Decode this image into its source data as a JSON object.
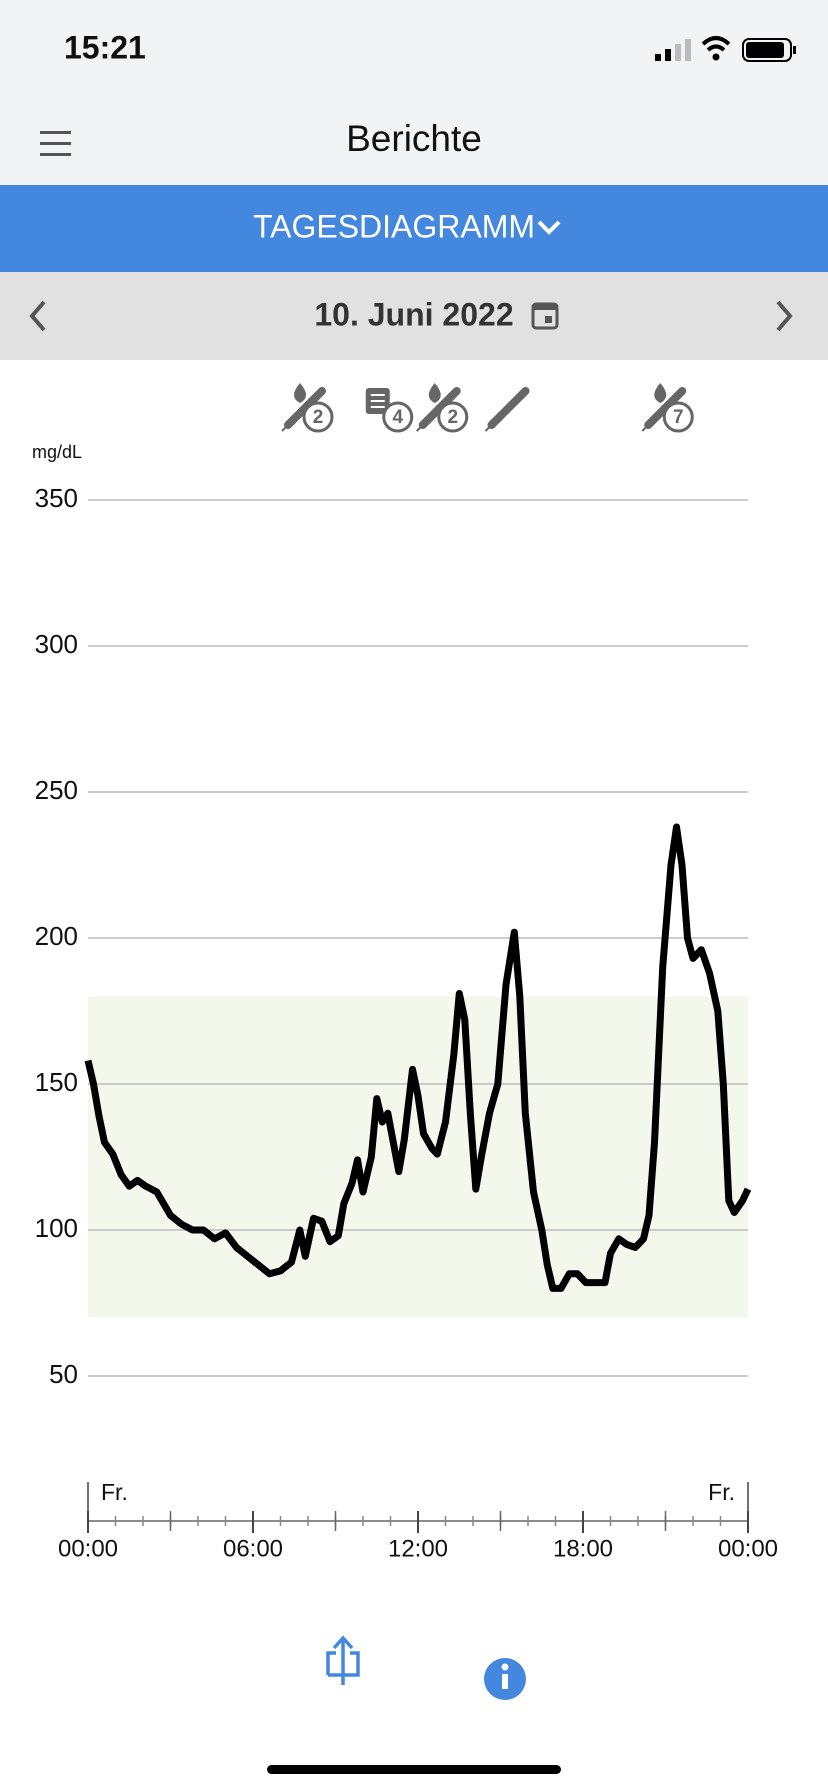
{
  "status_bar": {
    "time": "15:21"
  },
  "header": {
    "title": "Berichte"
  },
  "tab": {
    "label": "TAGESDIAGRAMM"
  },
  "date_nav": {
    "date": "10. Juni 2022"
  },
  "chart_data": {
    "type": "line",
    "y_label": "mg/dL",
    "color": "#000000",
    "events": [
      {
        "x": 8,
        "kind": "insulin",
        "count": 2
      },
      {
        "x": 10.9,
        "kind": "note",
        "count": 4
      },
      {
        "x": 12.9,
        "kind": "insulin",
        "count": 2
      },
      {
        "x": 15.4,
        "kind": "syringe"
      },
      {
        "x": 21.1,
        "kind": "insulin",
        "count": 7
      }
    ],
    "target_range": [
      70,
      180
    ],
    "target_color": "#f4f8ec",
    "ylim": [
      50,
      350
    ],
    "yticks": [
      50,
      100,
      150,
      200,
      250,
      300,
      350
    ],
    "grid": true,
    "xlim": [
      0,
      24
    ],
    "xticks": [
      {
        "value": 0,
        "label": "00:00"
      },
      {
        "value": 6,
        "label": "06:00"
      },
      {
        "value": 12,
        "label": "12:00"
      },
      {
        "value": 18,
        "label": "18:00"
      },
      {
        "value": 24,
        "label": "00:00"
      }
    ],
    "xminorticks": [
      1,
      2,
      3,
      4,
      5,
      7,
      8,
      9,
      10,
      11,
      13,
      14,
      15,
      16,
      17,
      19,
      20,
      21,
      22,
      23
    ],
    "xmidticks": [
      3,
      9,
      15,
      21
    ],
    "day_labels": [
      {
        "x": 0,
        "text": "Fr."
      },
      {
        "x": 24,
        "text": "Fr."
      }
    ],
    "x": [
      0,
      0.2,
      0.4,
      0.6,
      0.9,
      1.2,
      1.5,
      1.8,
      2.1,
      2.5,
      3,
      3.4,
      3.8,
      4.2,
      4.6,
      5,
      5.4,
      5.8,
      6.2,
      6.6,
      7,
      7.4,
      7.7,
      7.9,
      8.2,
      8.5,
      8.8,
      9.1,
      9.3,
      9.6,
      9.8,
      10,
      10.3,
      10.5,
      10.7,
      10.9,
      11.1,
      11.3,
      11.5,
      11.8,
      12,
      12.2,
      12.5,
      12.7,
      13,
      13.3,
      13.5,
      13.7,
      13.9,
      14.1,
      14.3,
      14.6,
      14.9,
      15.2,
      15.5,
      15.7,
      15.9,
      16.2,
      16.5,
      16.7,
      16.9,
      17.2,
      17.5,
      17.8,
      18.1,
      18.5,
      18.8,
      19,
      19.3,
      19.6,
      19.9,
      20.2,
      20.4,
      20.6,
      20.9,
      21.2,
      21.4,
      21.6,
      21.8,
      22,
      22.3,
      22.6,
      22.9,
      23.1,
      23.3,
      23.5,
      23.8,
      24
    ],
    "values": [
      158,
      150,
      139,
      130,
      126,
      119,
      115,
      117,
      115,
      113,
      105,
      102,
      100,
      100,
      97,
      99,
      94,
      91,
      88,
      85,
      86,
      89,
      100,
      91,
      104,
      103,
      96,
      98,
      109,
      116,
      124,
      113,
      125,
      145,
      137,
      140,
      130,
      120,
      131,
      155,
      146,
      133,
      128,
      126,
      137,
      160,
      181,
      172,
      140,
      114,
      125,
      140,
      150,
      184,
      202,
      180,
      140,
      113,
      100,
      88,
      80,
      80,
      85,
      85,
      82,
      82,
      82,
      92,
      97,
      95,
      94,
      97,
      105,
      130,
      190,
      225,
      238,
      225,
      200,
      193,
      196,
      188,
      175,
      150,
      110,
      106,
      110,
      114
    ]
  }
}
